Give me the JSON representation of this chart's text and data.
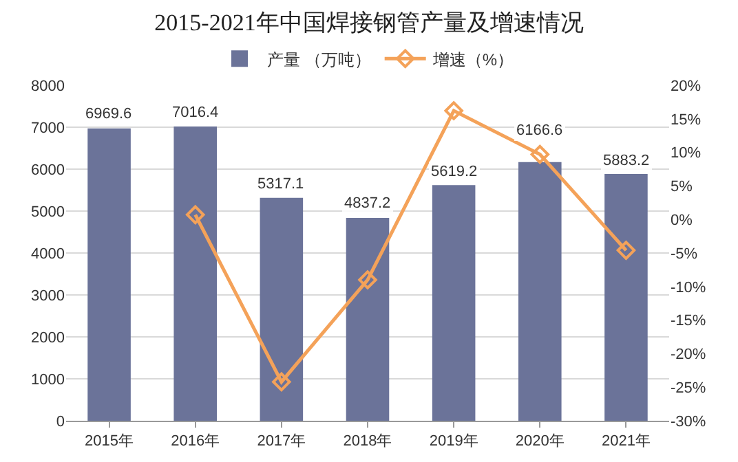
{
  "chart_data": {
    "type": "bar",
    "title": "2015-2021年中国焊接钢管产量及增速情况",
    "categories": [
      "2015年",
      "2016年",
      "2017年",
      "2018年",
      "2019年",
      "2020年",
      "2021年"
    ],
    "series": [
      {
        "name": "产量 （万吨）",
        "color": "#6b7399",
        "values": [
          6969.6,
          7016.4,
          5317.1,
          4837.2,
          5619.2,
          6166.6,
          5883.2
        ],
        "value_labels": [
          "6969.6",
          "7016.4",
          "5317.1",
          "4837.2",
          "5619.2",
          "6166.6",
          "5883.2"
        ]
      },
      {
        "name": "增速（%）",
        "type": "line",
        "axis": "y2",
        "color": "#f4a259",
        "marker": "diamond",
        "values": [
          null,
          0.7,
          -24.2,
          -9.0,
          16.2,
          9.7,
          -4.6
        ]
      }
    ],
    "ylim": [
      0,
      8000
    ],
    "yticks": [
      0,
      1000,
      2000,
      3000,
      4000,
      5000,
      6000,
      7000,
      8000
    ],
    "y2lim": [
      -30,
      20
    ],
    "y2ticks": [
      {
        "value": -30,
        "label": "-30%"
      },
      {
        "value": -25,
        "label": "-25%"
      },
      {
        "value": -20,
        "label": "-20%"
      },
      {
        "value": -15,
        "label": "-15%"
      },
      {
        "value": -10,
        "label": "-10%"
      },
      {
        "value": -5,
        "label": "-5%"
      },
      {
        "value": 0,
        "label": "0%"
      },
      {
        "value": 5,
        "label": "5%"
      },
      {
        "value": 10,
        "label": "10%"
      },
      {
        "value": 15,
        "label": "15%"
      },
      {
        "value": 20,
        "label": "20%"
      }
    ],
    "grid": "y",
    "legend": "top"
  }
}
